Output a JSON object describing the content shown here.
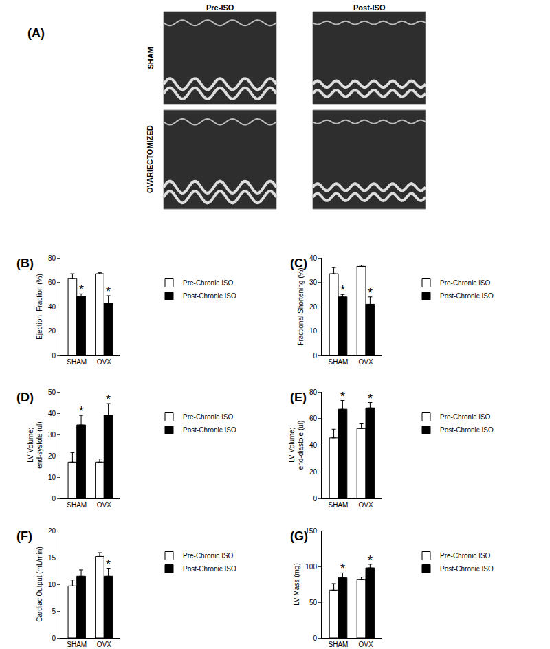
{
  "panel_a": {
    "label": "(A)",
    "columns": [
      "Pre-ISO",
      "Post-ISO"
    ],
    "rows": [
      "SHAM",
      "OVARIECTOMIZED"
    ]
  },
  "chart_data": [
    {
      "type": "bar",
      "title": "(B)",
      "ylabel": [
        "Ejection  Fraction (%)"
      ],
      "categories": [
        "SHAM",
        "OVX"
      ],
      "series": [
        {
          "name": "Pre-Chronic ISO",
          "color": "#ffffff",
          "values": [
            63,
            67
          ],
          "errors": [
            4,
            1
          ]
        },
        {
          "name": "Post-Chronic ISO",
          "color": "#000000",
          "values": [
            48.5,
            43
          ],
          "errors": [
            2,
            6
          ],
          "significance": [
            "*",
            "*"
          ]
        }
      ],
      "ylim": [
        0,
        80
      ],
      "yticks": [
        0,
        20,
        40,
        60,
        80
      ],
      "grid": false,
      "legend": "right"
    },
    {
      "type": "bar",
      "title": "(C)",
      "ylabel": [
        "Fractional Shortening (%)"
      ],
      "categories": [
        "SHAM",
        "OVX"
      ],
      "series": [
        {
          "name": "Pre-Chronic ISO",
          "color": "#ffffff",
          "values": [
            33.5,
            36.5
          ],
          "errors": [
            2.5,
            0.5
          ]
        },
        {
          "name": "Post-Chronic ISO",
          "color": "#000000",
          "values": [
            24,
            21
          ],
          "errors": [
            1,
            3
          ],
          "significance": [
            "*",
            "*"
          ]
        }
      ],
      "ylim": [
        0,
        40
      ],
      "yticks": [
        0,
        10,
        20,
        30,
        40
      ],
      "grid": false,
      "legend": "right"
    },
    {
      "type": "bar",
      "title": "(D)",
      "ylabel": [
        "LV Volume;",
        "end-systole (ul)"
      ],
      "categories": [
        "SHAM",
        "OVX"
      ],
      "series": [
        {
          "name": "Pre-Chronic ISO",
          "color": "#ffffff",
          "values": [
            17,
            17
          ],
          "errors": [
            4.5,
            1.5
          ]
        },
        {
          "name": "Post-Chronic ISO",
          "color": "#000000",
          "values": [
            34.5,
            39
          ],
          "errors": [
            4.5,
            5.5
          ],
          "significance": [
            "*",
            "*"
          ]
        }
      ],
      "ylim": [
        0,
        50
      ],
      "yticks": [
        0,
        10,
        20,
        30,
        40,
        50
      ],
      "grid": false,
      "legend": "right"
    },
    {
      "type": "bar",
      "title": "(E)",
      "ylabel": [
        "LV Volume;",
        "end-diastole (ul)"
      ],
      "categories": [
        "SHAM",
        "OVX"
      ],
      "series": [
        {
          "name": "Pre-Chronic ISO",
          "color": "#ffffff",
          "values": [
            45.5,
            52.5
          ],
          "errors": [
            6.5,
            3.5
          ]
        },
        {
          "name": "Post-Chronic ISO",
          "color": "#000000",
          "values": [
            67,
            68
          ],
          "errors": [
            6.5,
            4
          ],
          "significance": [
            "*",
            "*"
          ]
        }
      ],
      "ylim": [
        0,
        80
      ],
      "yticks": [
        0,
        20,
        40,
        60,
        80
      ],
      "grid": false,
      "legend": "right"
    },
    {
      "type": "bar",
      "title": "(F)",
      "ylabel": [
        "Cardiac Output (mL/min)"
      ],
      "categories": [
        "SHAM",
        "OVX"
      ],
      "series": [
        {
          "name": "Pre-Chronic ISO",
          "color": "#ffffff",
          "values": [
            9.7,
            15.2
          ],
          "errors": [
            1.1,
            0.7
          ]
        },
        {
          "name": "Post-Chronic ISO",
          "color": "#000000",
          "values": [
            11.5,
            11.5
          ],
          "errors": [
            1.2,
            1.5
          ],
          "significance": [
            null,
            "*"
          ]
        }
      ],
      "ylim": [
        0,
        20
      ],
      "yticks": [
        0,
        5,
        10,
        15,
        20
      ],
      "grid": false,
      "legend": "right"
    },
    {
      "type": "bar",
      "title": "(G)",
      "ylabel": [
        "LV Mass (mg)"
      ],
      "categories": [
        "SHAM",
        "OVX"
      ],
      "series": [
        {
          "name": "Pre-Chronic ISO",
          "color": "#ffffff",
          "values": [
            67,
            82
          ],
          "errors": [
            9,
            3
          ]
        },
        {
          "name": "Post-Chronic ISO",
          "color": "#000000",
          "values": [
            84,
            98
          ],
          "errors": [
            7,
            5
          ],
          "significance": [
            "*",
            "*"
          ]
        }
      ],
      "ylim": [
        0,
        150
      ],
      "yticks": [
        0,
        50,
        100,
        150
      ],
      "grid": false,
      "legend": "right"
    }
  ]
}
